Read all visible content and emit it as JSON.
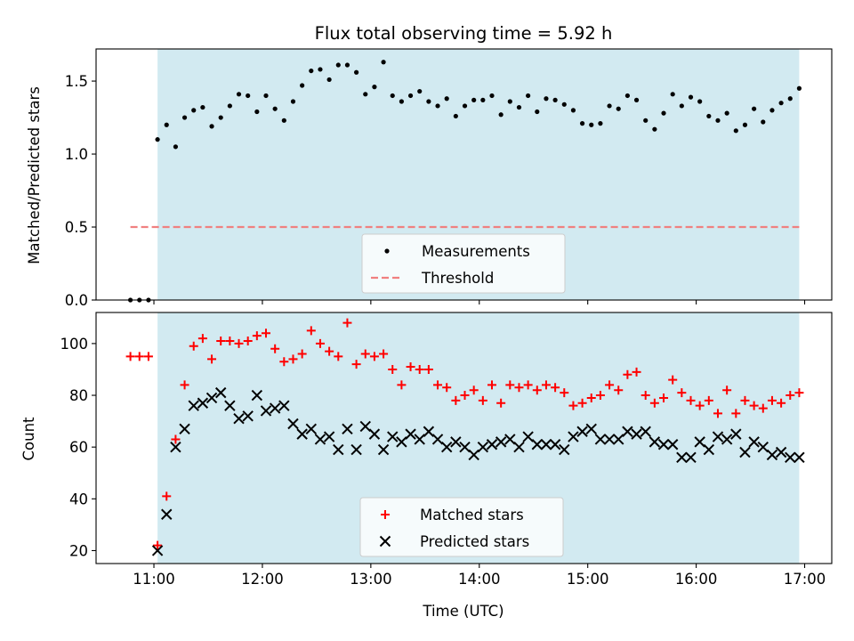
{
  "chart_data": [
    {
      "type": "scatter",
      "title": "Flux total observing time = 5.92 h",
      "ylabel": "Matched/Predicted stars",
      "xlabel": "",
      "xlim": [
        "10:28",
        "17:15"
      ],
      "ylim": [
        0,
        1.72
      ],
      "x_ticks": [
        "11:00",
        "12:00",
        "13:00",
        "14:00",
        "15:00",
        "16:00",
        "17:00"
      ],
      "y_ticks": [
        "0.0",
        "0.5",
        "1.0",
        "1.5"
      ],
      "highlight_span": [
        "11:02",
        "16:57"
      ],
      "legend": {
        "placement": "lower-center",
        "entries": [
          "Measurements",
          "Threshold"
        ]
      },
      "threshold": {
        "name": "Threshold",
        "value": 0.5,
        "x_range": [
          "10:47",
          "16:57"
        ]
      },
      "series": [
        {
          "name": "Measurements",
          "x": [
            "10:47",
            "10:52",
            "10:57",
            "11:02",
            "11:07",
            "11:12",
            "11:17",
            "11:22",
            "11:27",
            "11:32",
            "11:37",
            "11:42",
            "11:47",
            "11:52",
            "11:57",
            "12:02",
            "12:07",
            "12:12",
            "12:17",
            "12:22",
            "12:27",
            "12:32",
            "12:37",
            "12:42",
            "12:47",
            "12:52",
            "12:57",
            "13:02",
            "13:07",
            "13:12",
            "13:17",
            "13:22",
            "13:27",
            "13:32",
            "13:37",
            "13:42",
            "13:47",
            "13:52",
            "13:57",
            "14:02",
            "14:07",
            "14:12",
            "14:17",
            "14:22",
            "14:27",
            "14:32",
            "14:37",
            "14:42",
            "14:47",
            "14:52",
            "14:57",
            "15:02",
            "15:07",
            "15:12",
            "15:17",
            "15:22",
            "15:27",
            "15:32",
            "15:37",
            "15:42",
            "15:47",
            "15:52",
            "15:57",
            "16:02",
            "16:07",
            "16:12",
            "16:17",
            "16:22",
            "16:27",
            "16:32",
            "16:37",
            "16:42",
            "16:47",
            "16:52",
            "16:57"
          ],
          "y": [
            0,
            0,
            0,
            1.1,
            1.2,
            1.05,
            1.25,
            1.3,
            1.32,
            1.19,
            1.25,
            1.33,
            1.41,
            1.4,
            1.29,
            1.4,
            1.31,
            1.23,
            1.36,
            1.47,
            1.57,
            1.58,
            1.51,
            1.61,
            1.61,
            1.56,
            1.41,
            1.46,
            1.63,
            1.4,
            1.36,
            1.4,
            1.43,
            1.36,
            1.33,
            1.38,
            1.26,
            1.33,
            1.37,
            1.37,
            1.4,
            1.27,
            1.36,
            1.32,
            1.4,
            1.29,
            1.38,
            1.37,
            1.34,
            1.3,
            1.21,
            1.2,
            1.21,
            1.33,
            1.31,
            1.4,
            1.37,
            1.23,
            1.17,
            1.28,
            1.41,
            1.33,
            1.39,
            1.36,
            1.26,
            1.23,
            1.28,
            1.16,
            1.2,
            1.31,
            1.22,
            1.3,
            1.35,
            1.38,
            1.45
          ]
        }
      ]
    },
    {
      "type": "scatter",
      "title": "",
      "ylabel": "Count",
      "xlabel": "Time (UTC)",
      "xlim": [
        "10:28",
        "17:15"
      ],
      "ylim": [
        15,
        112
      ],
      "x_ticks": [
        "11:00",
        "12:00",
        "13:00",
        "14:00",
        "15:00",
        "16:00",
        "17:00"
      ],
      "y_ticks": [
        "20",
        "40",
        "60",
        "80",
        "100"
      ],
      "highlight_span": [
        "11:02",
        "16:57"
      ],
      "legend": {
        "placement": "lower-center",
        "entries": [
          "Matched stars",
          "Predicted stars"
        ]
      },
      "series": [
        {
          "name": "Matched stars",
          "x": [
            "10:47",
            "10:52",
            "10:57",
            "11:02",
            "11:07",
            "11:12",
            "11:17",
            "11:22",
            "11:27",
            "11:32",
            "11:37",
            "11:42",
            "11:47",
            "11:52",
            "11:57",
            "12:02",
            "12:07",
            "12:12",
            "12:17",
            "12:22",
            "12:27",
            "12:32",
            "12:37",
            "12:42",
            "12:47",
            "12:52",
            "12:57",
            "13:02",
            "13:07",
            "13:12",
            "13:17",
            "13:22",
            "13:27",
            "13:32",
            "13:37",
            "13:42",
            "13:47",
            "13:52",
            "13:57",
            "14:02",
            "14:07",
            "14:12",
            "14:17",
            "14:22",
            "14:27",
            "14:32",
            "14:37",
            "14:42",
            "14:47",
            "14:52",
            "14:57",
            "15:02",
            "15:07",
            "15:12",
            "15:17",
            "15:22",
            "15:27",
            "15:32",
            "15:37",
            "15:42",
            "15:47",
            "15:52",
            "15:57",
            "16:02",
            "16:07",
            "16:12",
            "16:17",
            "16:22",
            "16:27",
            "16:32",
            "16:37",
            "16:42",
            "16:47",
            "16:52",
            "16:57"
          ],
          "y": [
            95,
            95,
            95,
            22,
            41,
            63,
            84,
            99,
            102,
            94,
            101,
            101,
            100,
            101,
            103,
            104,
            98,
            93,
            94,
            96,
            105,
            100,
            97,
            95,
            108,
            92,
            96,
            95,
            96,
            90,
            84,
            91,
            90,
            90,
            84,
            83,
            78,
            80,
            82,
            78,
            84,
            77,
            84,
            83,
            84,
            82,
            84,
            83,
            81,
            76,
            77,
            79,
            80,
            84,
            82,
            88,
            89,
            80,
            77,
            79,
            86,
            81,
            78,
            76,
            78,
            73,
            82,
            73,
            78,
            76,
            75,
            78,
            77,
            80,
            81
          ]
        },
        {
          "name": "Predicted stars",
          "x": [
            "11:02",
            "11:07",
            "11:12",
            "11:17",
            "11:22",
            "11:27",
            "11:32",
            "11:37",
            "11:42",
            "11:47",
            "11:52",
            "11:57",
            "12:02",
            "12:07",
            "12:12",
            "12:17",
            "12:22",
            "12:27",
            "12:32",
            "12:37",
            "12:42",
            "12:47",
            "12:52",
            "12:57",
            "13:02",
            "13:07",
            "13:12",
            "13:17",
            "13:22",
            "13:27",
            "13:32",
            "13:37",
            "13:42",
            "13:47",
            "13:52",
            "13:57",
            "14:02",
            "14:07",
            "14:12",
            "14:17",
            "14:22",
            "14:27",
            "14:32",
            "14:37",
            "14:42",
            "14:47",
            "14:52",
            "14:57",
            "15:02",
            "15:07",
            "15:12",
            "15:17",
            "15:22",
            "15:27",
            "15:32",
            "15:37",
            "15:42",
            "15:47",
            "15:52",
            "15:57",
            "16:02",
            "16:07",
            "16:12",
            "16:17",
            "16:22",
            "16:27",
            "16:32",
            "16:37",
            "16:42",
            "16:47",
            "16:52",
            "16:57"
          ],
          "y": [
            20,
            34,
            60,
            67,
            76,
            77,
            79,
            81,
            76,
            71,
            72,
            80,
            74,
            75,
            76,
            69,
            65,
            67,
            63,
            64,
            59,
            67,
            59,
            68,
            65,
            59,
            64,
            62,
            65,
            63,
            66,
            63,
            60,
            62,
            60,
            57,
            60,
            61,
            62,
            63,
            60,
            64,
            61,
            61,
            61,
            59,
            64,
            66,
            67,
            63,
            63,
            63,
            66,
            65,
            66,
            62,
            61,
            61,
            56,
            56,
            62,
            59,
            64,
            63,
            65,
            58,
            62,
            60,
            57,
            58,
            56,
            56
          ]
        }
      ]
    }
  ]
}
